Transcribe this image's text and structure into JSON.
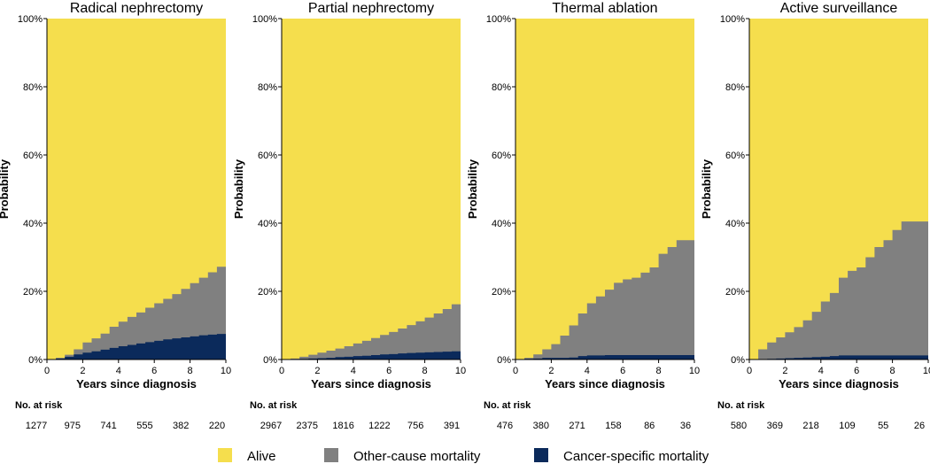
{
  "colors": {
    "alive": "#F5DE4D",
    "other": "#808080",
    "cancer": "#0B2A5B",
    "axis": "#000000"
  },
  "legend": [
    {
      "key": "alive",
      "label": "Alive"
    },
    {
      "key": "other",
      "label": "Other-cause mortality"
    },
    {
      "key": "cancer",
      "label": "Cancer-specific mortality"
    }
  ],
  "risk_header": "No. at risk",
  "chart_data": [
    {
      "type": "area",
      "title": "Radical nephrectomy",
      "xlabel": "Years since diagnosis",
      "ylabel": "Probability",
      "xlim": [
        0,
        10
      ],
      "ylim": [
        0,
        100
      ],
      "xticks": [
        0,
        2,
        4,
        6,
        8,
        10
      ],
      "yticks": [
        0,
        20,
        40,
        60,
        80,
        100
      ],
      "ytick_labels": [
        "0%",
        "20%",
        "40%",
        "60%",
        "80%",
        "100%"
      ],
      "x": [
        0,
        0.5,
        1,
        1.5,
        2,
        2.5,
        3,
        3.5,
        4,
        4.5,
        5,
        5.5,
        6,
        6.5,
        7,
        7.5,
        8,
        8.5,
        9,
        9.5,
        10
      ],
      "series": [
        {
          "name": "Cancer-specific mortality",
          "values": [
            0,
            0.3,
            0.8,
            1.5,
            2.0,
            2.4,
            2.9,
            3.4,
            3.9,
            4.3,
            4.7,
            5.1,
            5.5,
            5.9,
            6.2,
            6.5,
            6.8,
            7.1,
            7.3,
            7.5,
            8.0
          ]
        },
        {
          "name": "Other-cause mortality",
          "values": [
            0,
            0.5,
            1.4,
            3.0,
            5.0,
            6.2,
            7.6,
            9.6,
            11.1,
            12.5,
            13.8,
            15.2,
            16.5,
            17.8,
            19.2,
            20.7,
            22.4,
            24.0,
            25.6,
            27.2,
            29.9
          ]
        }
      ],
      "at_risk": [
        "1277",
        "975",
        "741",
        "555",
        "382",
        "220"
      ]
    },
    {
      "type": "area",
      "title": "Partial nephrectomy",
      "xlabel": "Years since diagnosis",
      "ylabel": "Probability",
      "xlim": [
        0,
        10
      ],
      "ylim": [
        0,
        100
      ],
      "xticks": [
        0,
        2,
        4,
        6,
        8,
        10
      ],
      "yticks": [
        0,
        20,
        40,
        60,
        80,
        100
      ],
      "ytick_labels": [
        "0%",
        "20%",
        "40%",
        "60%",
        "80%",
        "100%"
      ],
      "x": [
        0,
        0.5,
        1,
        1.5,
        2,
        2.5,
        3,
        3.5,
        4,
        4.5,
        5,
        5.5,
        6,
        6.5,
        7,
        7.5,
        8,
        8.5,
        9,
        9.5,
        10
      ],
      "series": [
        {
          "name": "Cancer-specific mortality",
          "values": [
            0,
            0.1,
            0.2,
            0.3,
            0.4,
            0.5,
            0.7,
            0.8,
            1.0,
            1.1,
            1.3,
            1.5,
            1.6,
            1.8,
            1.9,
            2.0,
            2.1,
            2.2,
            2.3,
            2.4,
            2.5
          ]
        },
        {
          "name": "Other-cause mortality",
          "values": [
            0,
            0.3,
            0.8,
            1.4,
            2.0,
            2.6,
            3.2,
            3.9,
            4.7,
            5.5,
            6.3,
            7.2,
            8.1,
            9.1,
            10.1,
            11.2,
            12.3,
            13.5,
            14.8,
            16.2,
            18.1
          ]
        }
      ],
      "at_risk": [
        "2967",
        "2375",
        "1816",
        "1222",
        "756",
        "391"
      ]
    },
    {
      "type": "area",
      "title": "Thermal ablation",
      "xlabel": "Years since diagnosis",
      "ylabel": "Probability",
      "xlim": [
        0,
        10
      ],
      "ylim": [
        0,
        100
      ],
      "xticks": [
        0,
        2,
        4,
        6,
        8,
        10
      ],
      "yticks": [
        0,
        20,
        40,
        60,
        80,
        100
      ],
      "ytick_labels": [
        "0%",
        "20%",
        "40%",
        "60%",
        "80%",
        "100%"
      ],
      "x": [
        0,
        0.5,
        1,
        1.5,
        2,
        2.5,
        3,
        3.5,
        4,
        4.5,
        5,
        5.5,
        6,
        6.5,
        7,
        7.5,
        8,
        8.5,
        9,
        9.5,
        10
      ],
      "series": [
        {
          "name": "Cancer-specific mortality",
          "values": [
            0,
            0.2,
            0.3,
            0.5,
            0.5,
            0.5,
            0.6,
            1.0,
            1.2,
            1.2,
            1.3,
            1.3,
            1.3,
            1.3,
            1.3,
            1.3,
            1.3,
            1.3,
            1.3,
            1.3,
            1.3
          ]
        },
        {
          "name": "Other-cause mortality",
          "values": [
            0,
            0.5,
            1.5,
            3.0,
            4.5,
            7.0,
            10.0,
            13.5,
            16.5,
            18.5,
            20.5,
            22.5,
            23.5,
            24.0,
            25.5,
            27.0,
            31.0,
            33.0,
            35.0,
            35.0,
            40.0
          ]
        }
      ],
      "at_risk": [
        "476",
        "380",
        "271",
        "158",
        "86",
        "36"
      ]
    },
    {
      "type": "area",
      "title": "Active surveillance",
      "xlabel": "Years since diagnosis",
      "ylabel": "Probability",
      "xlim": [
        0,
        10
      ],
      "ylim": [
        0,
        100
      ],
      "xticks": [
        0,
        2,
        4,
        6,
        8,
        10
      ],
      "yticks": [
        0,
        20,
        40,
        60,
        80,
        100
      ],
      "ytick_labels": [
        "0%",
        "20%",
        "40%",
        "60%",
        "80%",
        "100%"
      ],
      "x": [
        0,
        0.5,
        1,
        1.5,
        2,
        2.5,
        3,
        3.5,
        4,
        4.5,
        5,
        5.5,
        6,
        6.5,
        7,
        7.5,
        8,
        8.5,
        9,
        9.5,
        10
      ],
      "series": [
        {
          "name": "Cancer-specific mortality",
          "values": [
            0,
            0.1,
            0.2,
            0.3,
            0.4,
            0.5,
            0.6,
            0.7,
            0.8,
            1.0,
            1.2,
            1.2,
            1.2,
            1.2,
            1.2,
            1.2,
            1.2,
            1.2,
            1.2,
            1.2,
            1.2
          ]
        },
        {
          "name": "Other-cause mortality",
          "values": [
            0,
            3.0,
            5.0,
            6.5,
            8.0,
            9.5,
            11.5,
            14.0,
            17.0,
            19.5,
            24.0,
            26.0,
            27.0,
            30.0,
            33.0,
            35.0,
            38.0,
            40.5,
            40.5,
            40.5,
            42.5
          ]
        }
      ],
      "at_risk": [
        "580",
        "369",
        "218",
        "109",
        "55",
        "26"
      ]
    }
  ]
}
